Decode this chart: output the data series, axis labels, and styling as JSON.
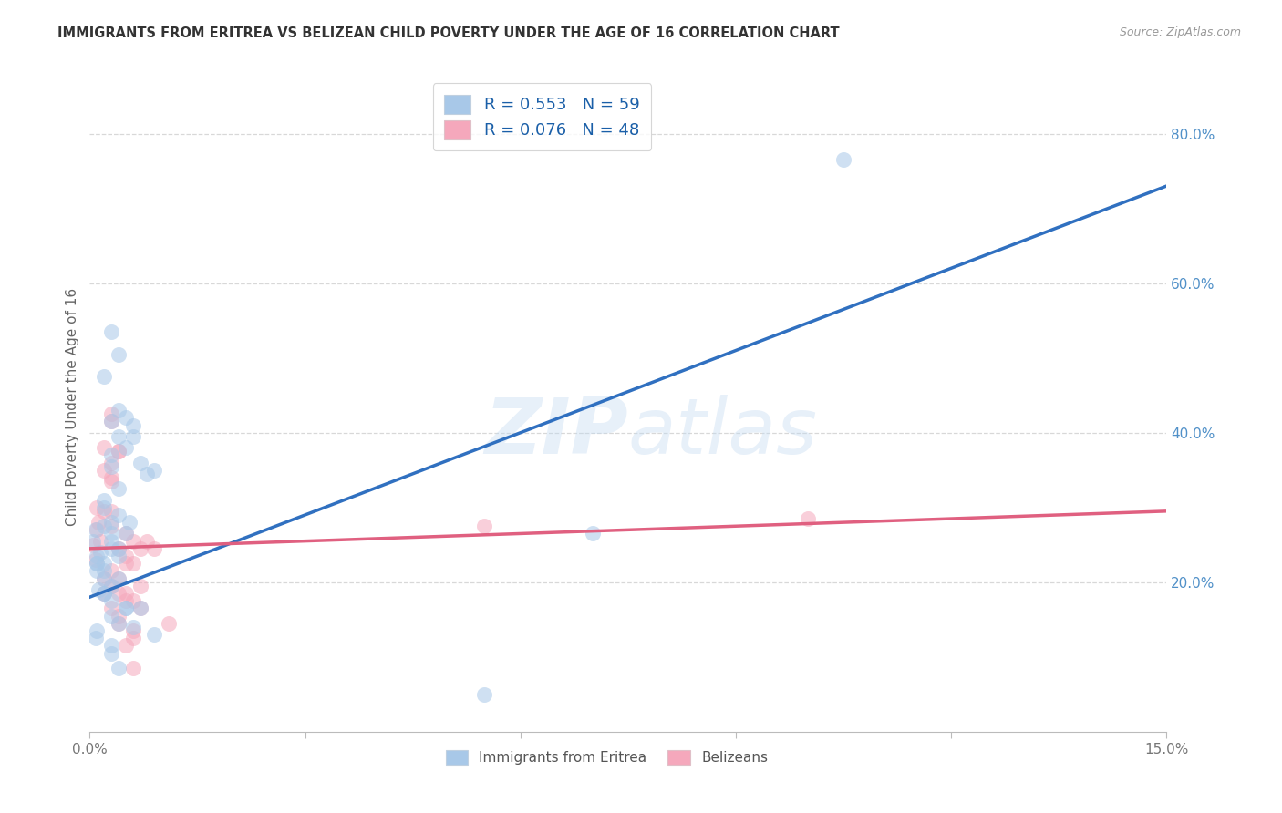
{
  "title": "IMMIGRANTS FROM ERITREA VS BELIZEAN CHILD POVERTY UNDER THE AGE OF 16 CORRELATION CHART",
  "source": "Source: ZipAtlas.com",
  "ylabel": "Child Poverty Under the Age of 16",
  "xmin": 0.0,
  "xmax": 0.15,
  "ymin": 0.0,
  "ymax": 0.87,
  "x_ticks": [
    0.0,
    0.03,
    0.06,
    0.09,
    0.12,
    0.15
  ],
  "x_tick_labels": [
    "0.0%",
    "",
    "",
    "",
    "",
    "15.0%"
  ],
  "y_ticks_right": [
    0.2,
    0.4,
    0.6,
    0.8
  ],
  "y_tick_labels_right": [
    "20.0%",
    "40.0%",
    "60.0%",
    "80.0%"
  ],
  "r_blue": "0.553",
  "n_blue": "59",
  "r_pink": "0.076",
  "n_pink": "48",
  "legend_label1": "Immigrants from Eritrea",
  "legend_label2": "Belizeans",
  "blue_color": "#a8c8e8",
  "pink_color": "#f5a8bc",
  "blue_line_color": "#3070c0",
  "pink_line_color": "#e06080",
  "watermark_zip": "ZIP",
  "watermark_atlas": "atlas",
  "background_color": "#ffffff",
  "grid_color": "#d8d8d8",
  "blue_line_y0": 0.18,
  "blue_line_y1": 0.73,
  "pink_line_y0": 0.245,
  "pink_line_y1": 0.295,
  "blue_x": [
    0.0005,
    0.001,
    0.0008,
    0.002,
    0.001,
    0.0015,
    0.002,
    0.003,
    0.0012,
    0.001,
    0.002,
    0.003,
    0.004,
    0.005,
    0.003,
    0.002,
    0.003,
    0.004,
    0.003,
    0.004,
    0.002,
    0.003,
    0.004,
    0.003,
    0.004,
    0.005,
    0.004,
    0.003,
    0.002,
    0.003,
    0.004,
    0.005,
    0.006,
    0.004,
    0.003,
    0.002,
    0.001,
    0.0008,
    0.002,
    0.003,
    0.004,
    0.003,
    0.001,
    0.002,
    0.003,
    0.005,
    0.006,
    0.007,
    0.008,
    0.009,
    0.004,
    0.005,
    0.006,
    0.007,
    0.009,
    0.055,
    0.07,
    0.105,
    0.0055
  ],
  "blue_y": [
    0.255,
    0.225,
    0.27,
    0.3,
    0.215,
    0.24,
    0.185,
    0.28,
    0.19,
    0.235,
    0.31,
    0.355,
    0.325,
    0.42,
    0.535,
    0.475,
    0.37,
    0.505,
    0.265,
    0.29,
    0.225,
    0.255,
    0.395,
    0.415,
    0.43,
    0.265,
    0.235,
    0.155,
    0.185,
    0.175,
    0.145,
    0.165,
    0.395,
    0.245,
    0.195,
    0.275,
    0.135,
    0.125,
    0.215,
    0.115,
    0.085,
    0.105,
    0.225,
    0.205,
    0.245,
    0.38,
    0.41,
    0.36,
    0.345,
    0.35,
    0.205,
    0.165,
    0.14,
    0.165,
    0.13,
    0.05,
    0.265,
    0.765,
    0.28
  ],
  "pink_x": [
    0.0005,
    0.001,
    0.0008,
    0.002,
    0.001,
    0.0015,
    0.0012,
    0.003,
    0.002,
    0.003,
    0.003,
    0.002,
    0.004,
    0.003,
    0.002,
    0.003,
    0.004,
    0.003,
    0.005,
    0.004,
    0.003,
    0.002,
    0.004,
    0.003,
    0.005,
    0.006,
    0.003,
    0.004,
    0.005,
    0.006,
    0.006,
    0.005,
    0.006,
    0.007,
    0.007,
    0.003,
    0.004,
    0.005,
    0.006,
    0.004,
    0.005,
    0.006,
    0.007,
    0.008,
    0.009,
    0.011,
    0.055,
    0.1
  ],
  "pink_y": [
    0.25,
    0.27,
    0.23,
    0.295,
    0.3,
    0.255,
    0.28,
    0.335,
    0.205,
    0.34,
    0.36,
    0.38,
    0.375,
    0.425,
    0.185,
    0.165,
    0.155,
    0.195,
    0.235,
    0.145,
    0.295,
    0.35,
    0.375,
    0.415,
    0.265,
    0.225,
    0.215,
    0.185,
    0.175,
    0.255,
    0.135,
    0.115,
    0.125,
    0.245,
    0.195,
    0.275,
    0.205,
    0.225,
    0.085,
    0.245,
    0.185,
    0.175,
    0.165,
    0.255,
    0.245,
    0.145,
    0.275,
    0.285
  ]
}
